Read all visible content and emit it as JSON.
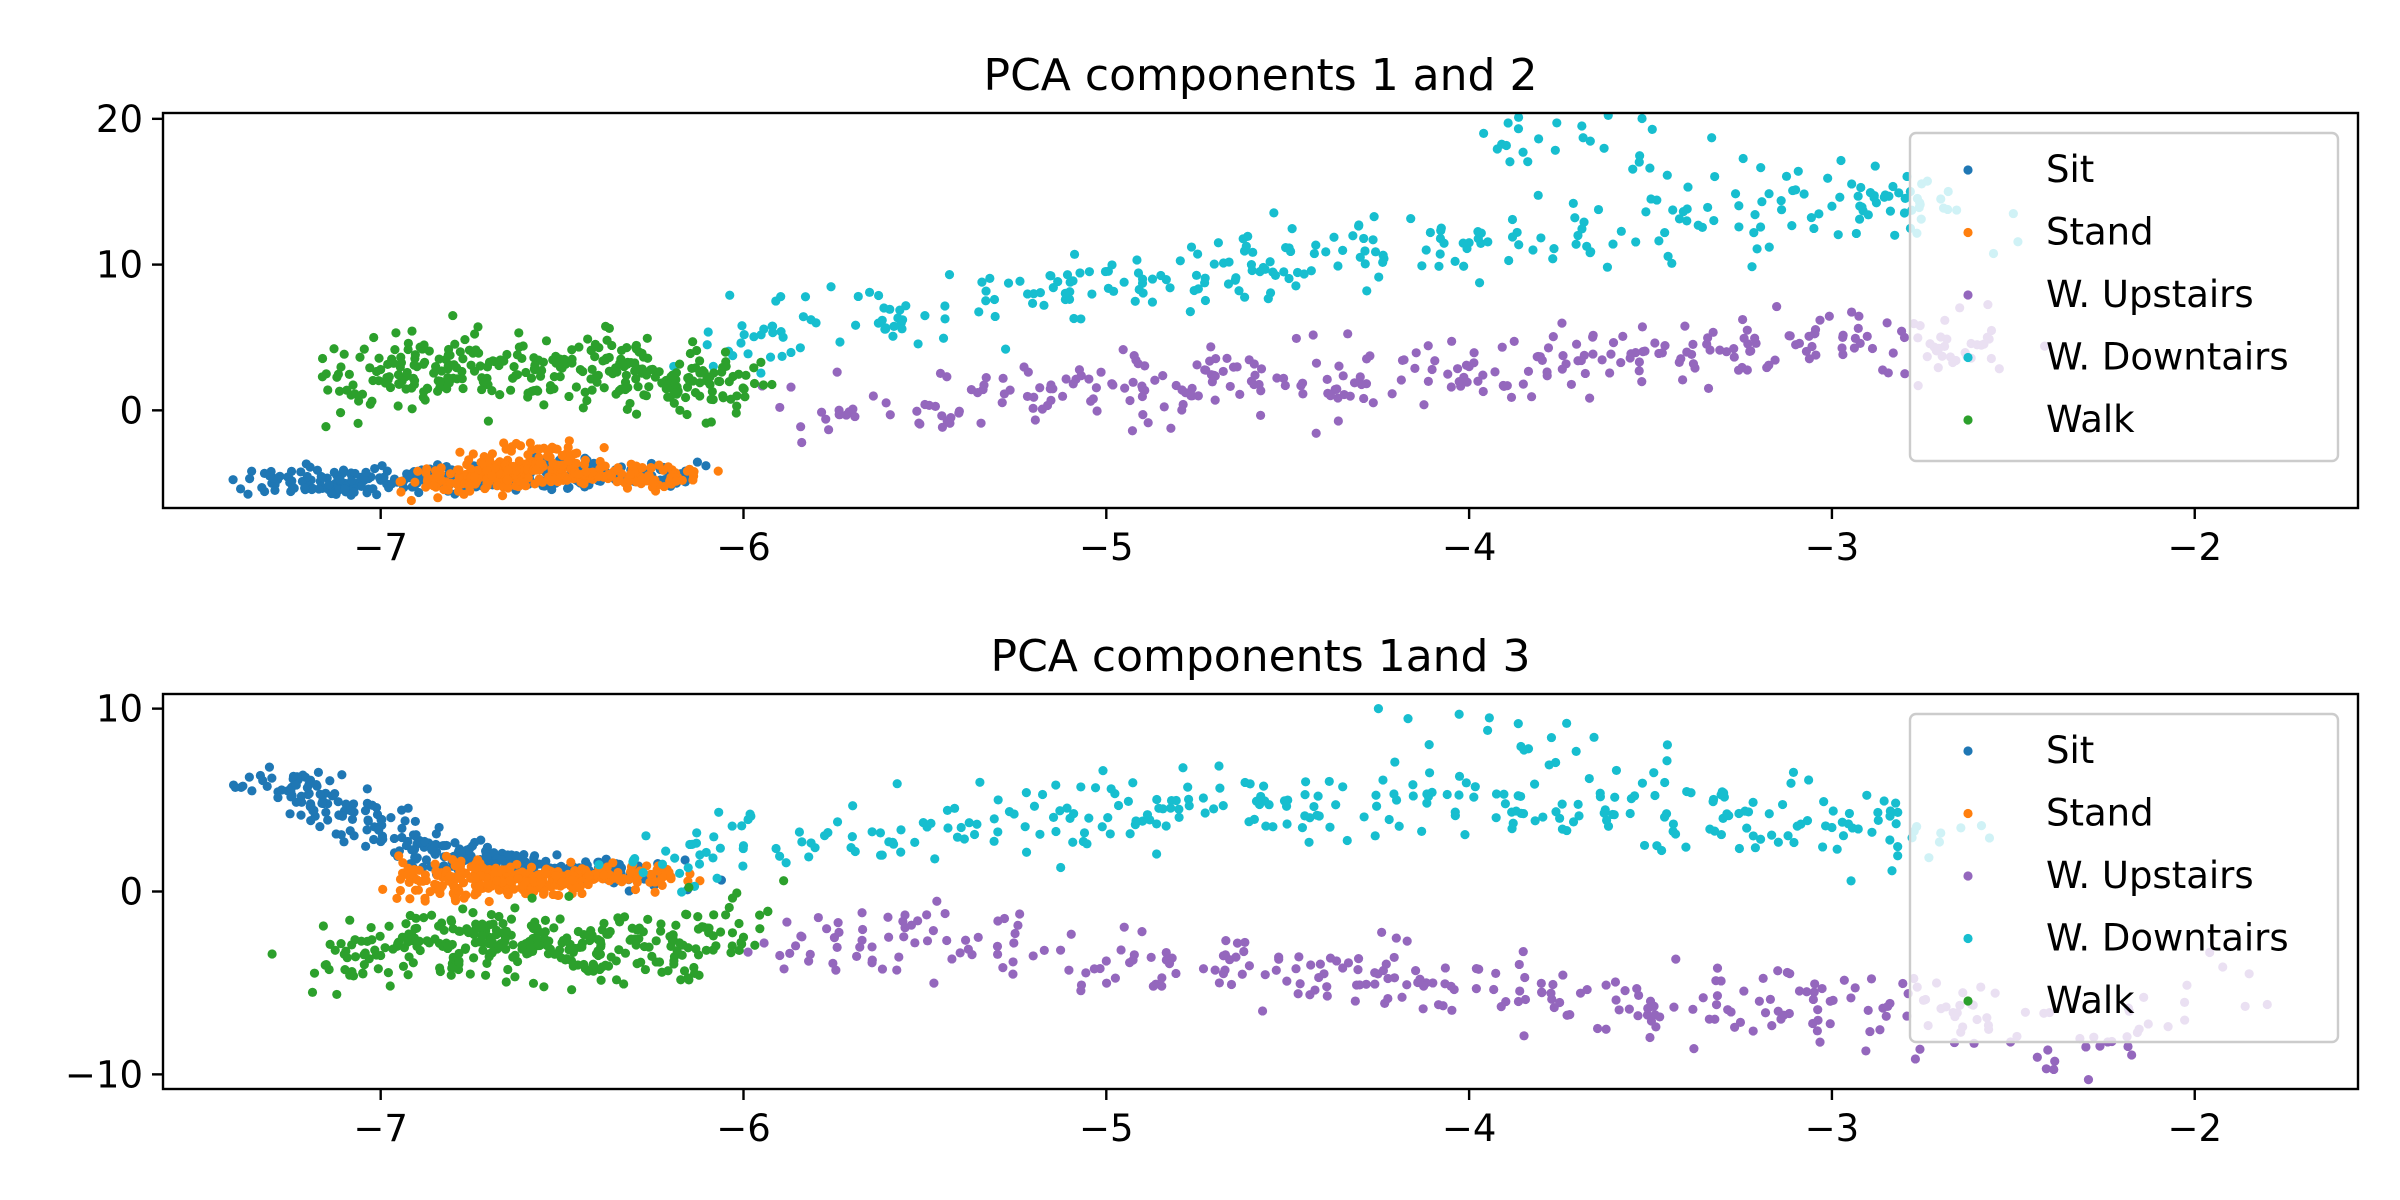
{
  "chart_data": [
    {
      "type": "scatter",
      "title": "PCA components 1 and 2",
      "xlabel": "",
      "ylabel": "",
      "xlim": [
        -7.6,
        -1.55
      ],
      "ylim": [
        -6.7,
        20.4
      ],
      "xticks": [
        -7,
        -6,
        -5,
        -4,
        -3,
        -2
      ],
      "xtick_labels": [
        "−7",
        "−6",
        "−5",
        "−4",
        "−3",
        "−2"
      ],
      "yticks": [
        0,
        10,
        20
      ],
      "ytick_labels": [
        "0",
        "10",
        "20"
      ],
      "grid": false,
      "legend_position": "upper right",
      "series": [
        {
          "name": "Sit",
          "color": "#1f77b4",
          "points": [
            [
              -7.3,
              -5.0
            ],
            [
              -7.2,
              -4.9
            ],
            [
              -7.1,
              -5.1
            ],
            [
              -7.0,
              -4.8
            ],
            [
              -6.9,
              -4.6
            ],
            [
              -6.8,
              -4.9
            ],
            [
              -6.7,
              -4.3
            ],
            [
              -6.6,
              -4.8
            ],
            [
              -6.5,
              -3.9
            ],
            [
              -6.4,
              -4.7
            ],
            [
              -6.3,
              -4.4
            ],
            [
              -6.2,
              -4.6
            ]
          ]
        },
        {
          "name": "Stand",
          "color": "#ff7f0e",
          "points": [
            [
              -6.85,
              -4.6
            ],
            [
              -6.75,
              -5.1
            ],
            [
              -6.7,
              -3.5
            ],
            [
              -6.65,
              -4.9
            ],
            [
              -6.6,
              -4.0
            ],
            [
              -6.55,
              -2.6
            ],
            [
              -6.5,
              -4.2
            ],
            [
              -6.4,
              -4.5
            ],
            [
              -6.3,
              -4.4
            ],
            [
              -6.2,
              -4.6
            ]
          ]
        },
        {
          "name": "W. Upstairs",
          "color": "#9467bd",
          "points": [
            [
              -5.9,
              0.2
            ],
            [
              -5.5,
              0.4
            ],
            [
              -5.2,
              0.9
            ],
            [
              -4.9,
              1.5
            ],
            [
              -4.6,
              2.0
            ],
            [
              -4.3,
              2.3
            ],
            [
              -4.0,
              3.0
            ],
            [
              -3.7,
              3.4
            ],
            [
              -3.4,
              4.0
            ],
            [
              -3.1,
              4.5
            ],
            [
              -2.8,
              5.0
            ],
            [
              -2.6,
              4.5
            ]
          ]
        },
        {
          "name": "W. Downtairs",
          "color": "#17becf",
          "points": [
            [
              -6.1,
              4.5
            ],
            [
              -5.8,
              6.0
            ],
            [
              -5.5,
              6.5
            ],
            [
              -5.2,
              8.0
            ],
            [
              -4.9,
              9.0
            ],
            [
              -4.6,
              10.0
            ],
            [
              -4.3,
              10.5
            ],
            [
              -4.0,
              11.5
            ],
            [
              -3.7,
              12.0
            ],
            [
              -3.4,
              13.0
            ],
            [
              -3.0,
              14.0
            ],
            [
              -2.7,
              14.5
            ],
            [
              -3.96,
              19.0
            ],
            [
              -2.5,
              13.5
            ]
          ]
        },
        {
          "name": "Walk",
          "color": "#2ca02c",
          "points": [
            [
              -7.15,
              2.5
            ],
            [
              -7.0,
              2.8
            ],
            [
              -6.9,
              3.0
            ],
            [
              -6.8,
              2.2
            ],
            [
              -6.7,
              3.3
            ],
            [
              -6.6,
              2.6
            ],
            [
              -6.5,
              2.9
            ],
            [
              -6.4,
              2.4
            ],
            [
              -6.3,
              2.7
            ],
            [
              -6.2,
              2.3
            ],
            [
              -6.1,
              2.0
            ],
            [
              -6.0,
              1.5
            ]
          ]
        }
      ]
    },
    {
      "type": "scatter",
      "title": "PCA components 1and 3",
      "xlabel": "",
      "ylabel": "",
      "xlim": [
        -7.6,
        -1.55
      ],
      "ylim": [
        -10.8,
        10.8
      ],
      "xticks": [
        -7,
        -6,
        -5,
        -4,
        -3,
        -2
      ],
      "xtick_labels": [
        "−7",
        "−6",
        "−5",
        "−4",
        "−3",
        "−2"
      ],
      "yticks": [
        -10,
        0,
        10
      ],
      "ytick_labels": [
        "−10",
        "0",
        "10"
      ],
      "grid": false,
      "legend_position": "upper right",
      "series": [
        {
          "name": "Sit",
          "color": "#1f77b4",
          "points": [
            [
              -7.3,
              6.2
            ],
            [
              -7.2,
              5.3
            ],
            [
              -7.1,
              4.4
            ],
            [
              -7.0,
              3.6
            ],
            [
              -6.9,
              2.6
            ],
            [
              -6.8,
              1.9
            ],
            [
              -6.7,
              1.6
            ],
            [
              -6.6,
              1.4
            ],
            [
              -6.5,
              1.3
            ],
            [
              -6.4,
              1.1
            ],
            [
              -6.3,
              0.9
            ],
            [
              -6.2,
              0.8
            ]
          ]
        },
        {
          "name": "Stand",
          "color": "#ff7f0e",
          "points": [
            [
              -6.85,
              1.5
            ],
            [
              -6.8,
              -0.1
            ],
            [
              -6.75,
              0.8
            ],
            [
              -6.7,
              1.2
            ],
            [
              -6.65,
              0.3
            ],
            [
              -6.6,
              0.6
            ],
            [
              -6.55,
              1.0
            ],
            [
              -6.5,
              0.5
            ],
            [
              -6.4,
              0.9
            ],
            [
              -6.3,
              0.8
            ],
            [
              -6.2,
              0.7
            ]
          ]
        },
        {
          "name": "W. Upstairs",
          "color": "#9467bd",
          "points": [
            [
              -5.9,
              -3.5
            ],
            [
              -5.6,
              -2.5
            ],
            [
              -5.3,
              -3.0
            ],
            [
              -5.0,
              -3.8
            ],
            [
              -4.7,
              -4.3
            ],
            [
              -4.4,
              -4.5
            ],
            [
              -4.1,
              -5.0
            ],
            [
              -3.8,
              -5.5
            ],
            [
              -3.5,
              -6.0
            ],
            [
              -3.2,
              -6.0
            ],
            [
              -2.9,
              -6.5
            ],
            [
              -2.6,
              -7.0
            ],
            [
              -2.3,
              -8.5
            ],
            [
              -1.85,
              -4.5
            ]
          ]
        },
        {
          "name": "W. Downtairs",
          "color": "#17becf",
          "points": [
            [
              -6.3,
              1.8
            ],
            [
              -6.0,
              2.5
            ],
            [
              -5.7,
              3.0
            ],
            [
              -5.4,
              3.5
            ],
            [
              -5.1,
              4.0
            ],
            [
              -4.8,
              4.5
            ],
            [
              -4.5,
              5.0
            ],
            [
              -4.2,
              5.0
            ],
            [
              -3.9,
              4.8
            ],
            [
              -3.6,
              4.2
            ],
            [
              -3.3,
              4.0
            ],
            [
              -3.0,
              3.5
            ],
            [
              -2.7,
              3.2
            ],
            [
              -4.25,
              10.0
            ]
          ]
        },
        {
          "name": "Walk",
          "color": "#2ca02c",
          "points": [
            [
              -7.15,
              -4.0
            ],
            [
              -7.0,
              -3.5
            ],
            [
              -6.9,
              -3.0
            ],
            [
              -6.8,
              -3.6
            ],
            [
              -6.7,
              -2.5
            ],
            [
              -6.6,
              -3.2
            ],
            [
              -6.5,
              -2.8
            ],
            [
              -6.4,
              -3.5
            ],
            [
              -6.3,
              -2.6
            ],
            [
              -6.2,
              -3.0
            ],
            [
              -6.1,
              -2.0
            ],
            [
              -6.0,
              -2.5
            ]
          ]
        }
      ]
    }
  ]
}
